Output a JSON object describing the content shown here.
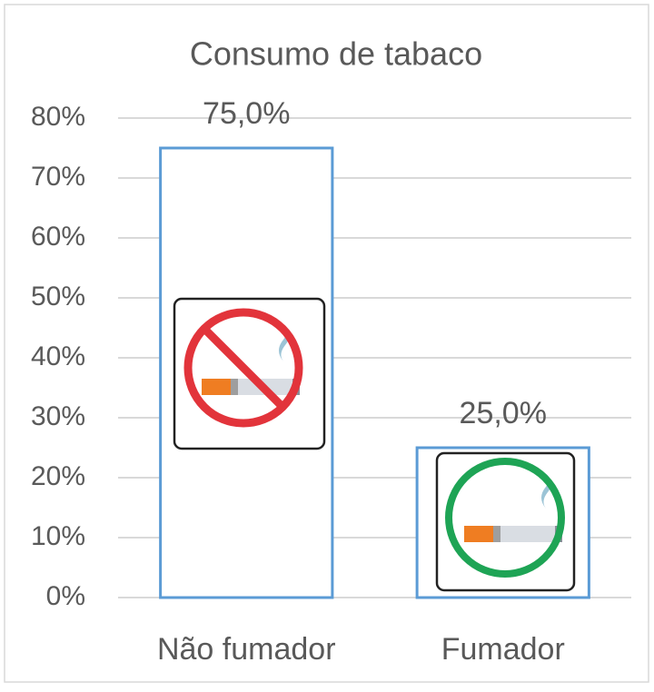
{
  "chart_data": {
    "type": "bar",
    "title": "Consumo de tabaco",
    "categories": [
      "Não fumador",
      "Fumador"
    ],
    "values": [
      75,
      25
    ],
    "value_labels": [
      "75,0%",
      "25,0%"
    ],
    "color": "#5b9bd5",
    "ylim": [
      0,
      80
    ],
    "yticks": [
      {
        "value": 0,
        "label": "0%"
      },
      {
        "value": 10,
        "label": "10%"
      },
      {
        "value": 20,
        "label": "20%"
      },
      {
        "value": 30,
        "label": "30%"
      },
      {
        "value": 40,
        "label": "40%"
      },
      {
        "value": 50,
        "label": "50%"
      },
      {
        "value": 60,
        "label": "60%"
      },
      {
        "value": 70,
        "label": "70%"
      },
      {
        "value": 80,
        "label": "80%"
      }
    ],
    "grid": true
  }
}
